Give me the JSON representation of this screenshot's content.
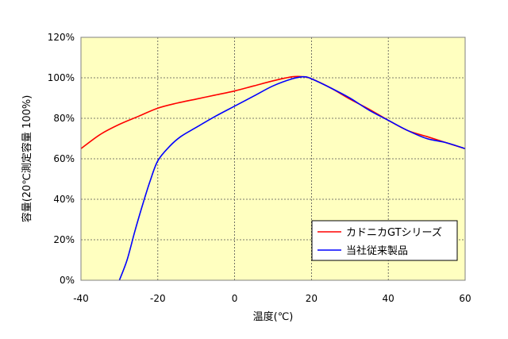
{
  "chart_data": {
    "type": "line",
    "title": "",
    "xlabel": "温度(℃)",
    "ylabel": "容量(20℃測定容量 100%)",
    "xlim": [
      -40,
      60
    ],
    "ylim": [
      0,
      120
    ],
    "xticks": [
      -40,
      -20,
      0,
      20,
      40,
      60
    ],
    "yticks": [
      0,
      20,
      40,
      60,
      80,
      100,
      120
    ],
    "xtick_labels": [
      "-40",
      "-20",
      "0",
      "20",
      "40",
      "60"
    ],
    "ytick_labels": [
      "0%",
      "20%",
      "40%",
      "60%",
      "80%",
      "100%",
      "120%"
    ],
    "grid": true,
    "background_color": "#ffffc0",
    "legend_position": "bottom-right",
    "series": [
      {
        "name": "カドニカGTシリーズ",
        "color": "#ff0000",
        "x": [
          -40,
          -35,
          -30,
          -25,
          -20,
          -15,
          -10,
          -5,
          0,
          5,
          10,
          15,
          18,
          20,
          25,
          30,
          35,
          40,
          45,
          50,
          55,
          60
        ],
        "y": [
          65,
          72,
          77,
          81,
          85,
          87.5,
          89.5,
          91.5,
          93.5,
          96,
          98.5,
          100.5,
          100.5,
          99.5,
          95,
          89.5,
          84.5,
          79,
          74,
          71,
          68,
          65
        ]
      },
      {
        "name": "当社従来製品",
        "color": "#0000ff",
        "x": [
          -30,
          -28,
          -26,
          -24,
          -22,
          -20,
          -17,
          -14,
          -10,
          -5,
          0,
          5,
          10,
          15,
          18,
          20,
          25,
          30,
          35,
          40,
          45,
          50,
          55,
          60
        ],
        "y": [
          0,
          10,
          24,
          37,
          49,
          59,
          66,
          71,
          75.5,
          81,
          86,
          91,
          96,
          99.5,
          100.5,
          99.5,
          95,
          90,
          84,
          79,
          74,
          70,
          68,
          65
        ]
      }
    ]
  }
}
